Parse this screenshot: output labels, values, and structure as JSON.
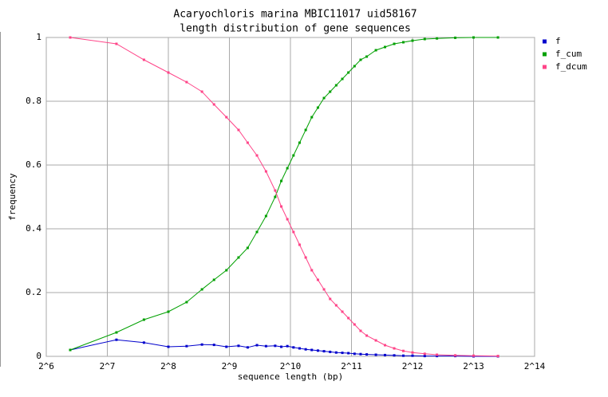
{
  "chart_data": {
    "type": "line",
    "title": [
      "Acaryochloris marina MBIC11017 uid58167",
      "length distribution of gene sequences"
    ],
    "xlabel": "sequence length (bp)",
    "ylabel": "frequency",
    "xscale": "log2",
    "x": [
      84,
      142,
      194,
      256,
      315,
      375,
      430,
      495,
      568,
      630,
      700,
      776,
      861,
      923,
      989,
      1060,
      1136,
      1218,
      1305,
      1399,
      1499,
      1607,
      1722,
      1846,
      1978,
      2120,
      2272,
      2435,
      2702,
      2997,
      3327,
      3691,
      4096,
      4705,
      5405,
      6654,
      8192,
      10809
    ],
    "series": [
      {
        "name": "f",
        "color": "#0000cc",
        "values": [
          0.02,
          0.052,
          0.043,
          0.03,
          0.032,
          0.037,
          0.036,
          0.03,
          0.033,
          0.028,
          0.035,
          0.032,
          0.033,
          0.03,
          0.032,
          0.028,
          0.025,
          0.022,
          0.02,
          0.018,
          0.016,
          0.014,
          0.012,
          0.011,
          0.01,
          0.008,
          0.007,
          0.006,
          0.005,
          0.004,
          0.003,
          0.002,
          0.002,
          0.001,
          0.001,
          0.001,
          0,
          0
        ]
      },
      {
        "name": "f_cum",
        "color": "#00a000",
        "values": [
          0.02,
          0.075,
          0.115,
          0.14,
          0.17,
          0.21,
          0.24,
          0.27,
          0.31,
          0.34,
          0.39,
          0.44,
          0.5,
          0.55,
          0.59,
          0.63,
          0.67,
          0.71,
          0.75,
          0.78,
          0.81,
          0.83,
          0.85,
          0.87,
          0.89,
          0.91,
          0.93,
          0.94,
          0.96,
          0.97,
          0.98,
          0.985,
          0.99,
          0.995,
          0.997,
          0.999,
          1,
          1
        ]
      },
      {
        "name": "f_dcum",
        "color": "#ff4488",
        "values": [
          1,
          0.98,
          0.93,
          0.89,
          0.86,
          0.83,
          0.79,
          0.75,
          0.71,
          0.67,
          0.63,
          0.58,
          0.52,
          0.47,
          0.43,
          0.39,
          0.35,
          0.31,
          0.27,
          0.24,
          0.21,
          0.18,
          0.16,
          0.14,
          0.12,
          0.1,
          0.08,
          0.065,
          0.05,
          0.035,
          0.025,
          0.017,
          0.012,
          0.008,
          0.005,
          0.003,
          0.002,
          0.001
        ]
      }
    ],
    "xlim": [
      64,
      16384
    ],
    "xticks": [
      {
        "value": 64,
        "label": "2^6"
      },
      {
        "value": 128,
        "label": "2^7"
      },
      {
        "value": 256,
        "label": "2^8"
      },
      {
        "value": 512,
        "label": "2^9"
      },
      {
        "value": 1024,
        "label": "2^10"
      },
      {
        "value": 2048,
        "label": "2^11"
      },
      {
        "value": 4096,
        "label": "2^12"
      },
      {
        "value": 8192,
        "label": "2^13"
      },
      {
        "value": 16384,
        "label": "2^14"
      }
    ],
    "ylim": [
      0,
      1
    ],
    "yticks": [
      0,
      0.2,
      0.4,
      0.6,
      0.8,
      1
    ],
    "grid": true,
    "legend": "outside-top-right"
  }
}
